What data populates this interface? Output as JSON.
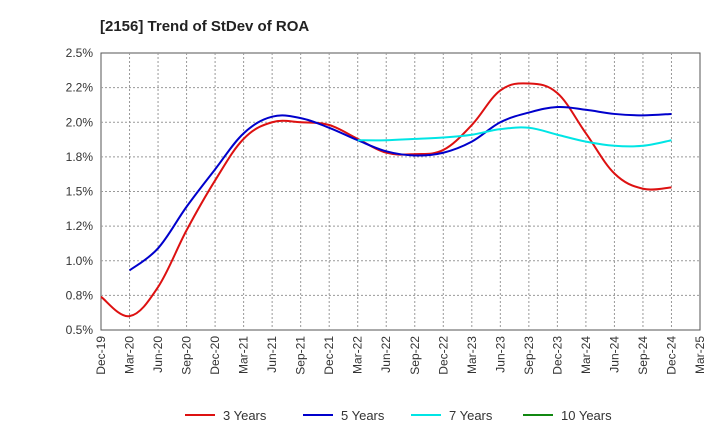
{
  "chart_data": {
    "type": "line",
    "title": "[2156]  Trend of StDev of ROA",
    "xlabel": "",
    "ylabel": "",
    "x": [
      "Dec-19",
      "Mar-20",
      "Jun-20",
      "Sep-20",
      "Dec-20",
      "Mar-21",
      "Jun-21",
      "Sep-21",
      "Dec-21",
      "Mar-22",
      "Jun-22",
      "Sep-22",
      "Dec-22",
      "Mar-23",
      "Jun-23",
      "Sep-23",
      "Dec-23",
      "Mar-24",
      "Jun-24",
      "Sep-24",
      "Dec-24",
      "Mar-25"
    ],
    "yticks": [
      "0.5%",
      "0.8%",
      "1.0%",
      "1.2%",
      "1.5%",
      "1.8%",
      "2.0%",
      "2.2%",
      "2.5%"
    ],
    "ylim": [
      0.5,
      2.5
    ],
    "grid": true,
    "legend_position": "bottom",
    "series": [
      {
        "name": "3 Years",
        "color": "#dd1111",
        "values": [
          0.74,
          0.6,
          0.81,
          1.22,
          1.58,
          1.88,
          2.0,
          2.0,
          1.98,
          1.88,
          1.78,
          1.77,
          1.8,
          1.98,
          2.23,
          2.28,
          2.21,
          1.92,
          1.63,
          1.52,
          1.53,
          null
        ]
      },
      {
        "name": "5 Years",
        "color": "#0000cc",
        "values": [
          null,
          0.93,
          1.09,
          1.39,
          1.66,
          1.92,
          2.04,
          2.03,
          1.96,
          1.87,
          1.79,
          1.76,
          1.78,
          1.86,
          2.0,
          2.07,
          2.11,
          2.09,
          2.06,
          2.05,
          2.06,
          null
        ]
      },
      {
        "name": "7 Years",
        "color": "#00e5e5",
        "values": [
          null,
          null,
          null,
          null,
          null,
          null,
          null,
          null,
          null,
          1.87,
          1.87,
          1.88,
          1.89,
          1.91,
          1.95,
          1.96,
          1.91,
          1.86,
          1.83,
          1.83,
          1.87,
          null
        ]
      },
      {
        "name": "10 Years",
        "color": "#118811",
        "values": [
          null,
          null,
          null,
          null,
          null,
          null,
          null,
          null,
          null,
          null,
          null,
          null,
          null,
          null,
          null,
          null,
          null,
          null,
          null,
          null,
          null,
          null
        ]
      }
    ]
  }
}
